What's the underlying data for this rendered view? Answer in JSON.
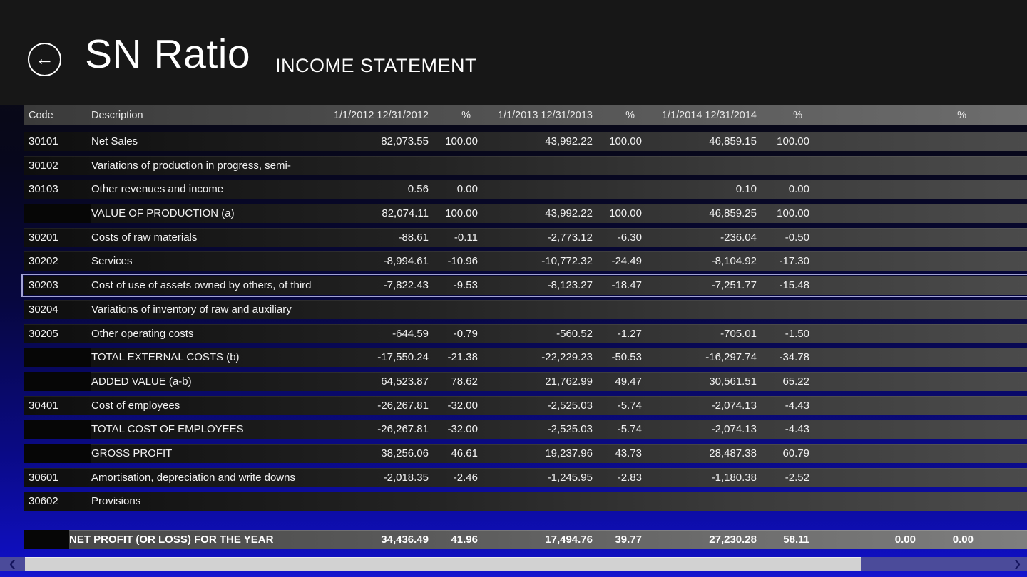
{
  "app": {
    "title": "SN Ratio",
    "subtitle": "INCOME STATEMENT",
    "back_icon": "←"
  },
  "table": {
    "headers": {
      "code": "Code",
      "description": "Description",
      "period1": "1/1/2012 12/31/2012",
      "pct1": "%",
      "period2": "1/1/2013 12/31/2013",
      "pct2": "%",
      "period3": "1/1/2014 12/31/2014",
      "pct3": "%",
      "period4": "",
      "pct4": "%"
    },
    "rows": [
      {
        "code": "30101",
        "description": "Net Sales",
        "v1": "82,073.55",
        "p1": "100.00",
        "v2": "43,992.22",
        "p2": "100.00",
        "v3": "46,859.15",
        "p3": "100.00",
        "v4": "",
        "p4": "",
        "style": "normal",
        "selected": false
      },
      {
        "code": "30102",
        "description": "Variations of production in progress, semi-",
        "v1": "",
        "p1": "",
        "v2": "",
        "p2": "",
        "v3": "",
        "p3": "",
        "v4": "",
        "p4": "",
        "style": "normal",
        "selected": false
      },
      {
        "code": "30103",
        "description": "Other revenues and income",
        "v1": "0.56",
        "p1": "0.00",
        "v2": "",
        "p2": "",
        "v3": "0.10",
        "p3": "0.00",
        "v4": "",
        "p4": "",
        "style": "normal",
        "selected": false
      },
      {
        "code": "",
        "description": "VALUE OF PRODUCTION (a)",
        "v1": "82,074.11",
        "p1": "100.00",
        "v2": "43,992.22",
        "p2": "100.00",
        "v3": "46,859.25",
        "p3": "100.00",
        "v4": "",
        "p4": "",
        "style": "total",
        "selected": false
      },
      {
        "code": "30201",
        "description": "Costs of raw materials",
        "v1": "-88.61",
        "p1": "-0.11",
        "v2": "-2,773.12",
        "p2": "-6.30",
        "v3": "-236.04",
        "p3": "-0.50",
        "v4": "",
        "p4": "",
        "style": "normal",
        "selected": false
      },
      {
        "code": "30202",
        "description": "Services",
        "v1": "-8,994.61",
        "p1": "-10.96",
        "v2": "-10,772.32",
        "p2": "-24.49",
        "v3": "-8,104.92",
        "p3": "-17.30",
        "v4": "",
        "p4": "",
        "style": "normal",
        "selected": false
      },
      {
        "code": "30203",
        "description": "Cost of use of assets owned by others, of third",
        "v1": "-7,822.43",
        "p1": "-9.53",
        "v2": "-8,123.27",
        "p2": "-18.47",
        "v3": "-7,251.77",
        "p3": "-15.48",
        "v4": "",
        "p4": "",
        "style": "normal",
        "selected": true
      },
      {
        "code": "30204",
        "description": "Variations of inventory of raw and auxiliary",
        "v1": "",
        "p1": "",
        "v2": "",
        "p2": "",
        "v3": "",
        "p3": "",
        "v4": "",
        "p4": "",
        "style": "normal",
        "selected": false
      },
      {
        "code": "30205",
        "description": "Other operating costs",
        "v1": "-644.59",
        "p1": "-0.79",
        "v2": "-560.52",
        "p2": "-1.27",
        "v3": "-705.01",
        "p3": "-1.50",
        "v4": "",
        "p4": "",
        "style": "normal",
        "selected": false
      },
      {
        "code": "",
        "description": "TOTAL EXTERNAL COSTS (b)",
        "v1": "-17,550.24",
        "p1": "-21.38",
        "v2": "-22,229.23",
        "p2": "-50.53",
        "v3": "-16,297.74",
        "p3": "-34.78",
        "v4": "",
        "p4": "",
        "style": "total",
        "selected": false
      },
      {
        "code": "",
        "description": "ADDED VALUE (a-b)",
        "v1": "64,523.87",
        "p1": "78.62",
        "v2": "21,762.99",
        "p2": "49.47",
        "v3": "30,561.51",
        "p3": "65.22",
        "v4": "",
        "p4": "",
        "style": "total",
        "selected": false
      },
      {
        "code": "30401",
        "description": "Cost of employees",
        "v1": "-26,267.81",
        "p1": "-32.00",
        "v2": "-2,525.03",
        "p2": "-5.74",
        "v3": "-2,074.13",
        "p3": "-4.43",
        "v4": "",
        "p4": "",
        "style": "normal",
        "selected": false
      },
      {
        "code": "",
        "description": "TOTAL COST OF EMPLOYEES",
        "v1": "-26,267.81",
        "p1": "-32.00",
        "v2": "-2,525.03",
        "p2": "-5.74",
        "v3": "-2,074.13",
        "p3": "-4.43",
        "v4": "",
        "p4": "",
        "style": "total",
        "selected": false
      },
      {
        "code": "",
        "description": "GROSS PROFIT",
        "v1": "38,256.06",
        "p1": "46.61",
        "v2": "19,237.96",
        "p2": "43.73",
        "v3": "28,487.38",
        "p3": "60.79",
        "v4": "",
        "p4": "",
        "style": "total",
        "selected": false
      },
      {
        "code": "30601",
        "description": "Amortisation, depreciation and write downs",
        "v1": "-2,018.35",
        "p1": "-2.46",
        "v2": "-1,245.95",
        "p2": "-2.83",
        "v3": "-1,180.38",
        "p3": "-2.52",
        "v4": "",
        "p4": "",
        "style": "normal",
        "selected": false
      },
      {
        "code": "30602",
        "description": "Provisions",
        "v1": "",
        "p1": "",
        "v2": "",
        "p2": "",
        "v3": "",
        "p3": "",
        "v4": "",
        "p4": "",
        "style": "normal",
        "selected": false
      }
    ],
    "footer_row": {
      "description": "NET PROFIT (OR LOSS) FOR THE YEAR",
      "v1": "34,436.49",
      "p1": "41.96",
      "v2": "17,494.76",
      "p2": "39.77",
      "v3": "27,230.28",
      "p3": "58.11",
      "v4": "0.00",
      "p4": "0.00"
    }
  },
  "scrollbar": {
    "left_arrow": "❮",
    "right_arrow": "❯"
  },
  "colors": {
    "app_bar_bg": "#171717",
    "page_gradient_top": "#0c0c0e",
    "page_gradient_bottom": "#1616cf",
    "row_strip_left": "#0e0e0e",
    "row_strip_right": "#4b4b4b",
    "header_strip_right": "#6d6d6d",
    "selected_outline": "#a3a3d6",
    "scroll_track": "#4b4b9a",
    "scroll_thumb": "#d2d2d2"
  }
}
